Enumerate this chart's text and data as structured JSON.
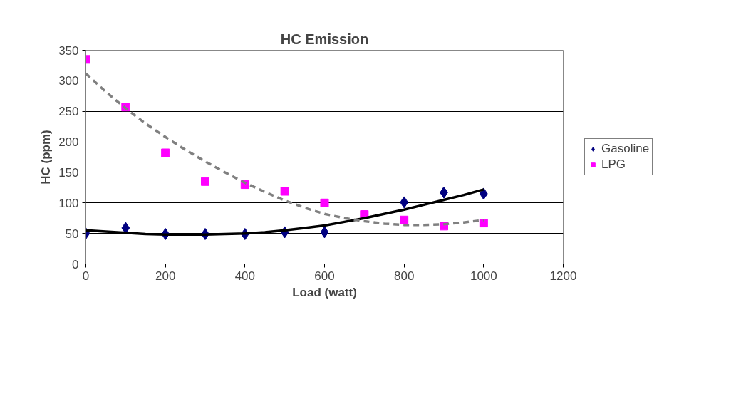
{
  "chart_data": {
    "type": "scatter",
    "title": "HC Emission",
    "xlabel": "Load (watt)",
    "ylabel": "HC (ppm)",
    "x": [
      0,
      100,
      200,
      300,
      400,
      500,
      600,
      700,
      800,
      900,
      1000
    ],
    "series": [
      {
        "name": "Gasoline",
        "color": "#000080",
        "marker": "diamond",
        "values": [
          50,
          59,
          49,
          49,
          49,
          52,
          52,
          null,
          101,
          117,
          115
        ]
      },
      {
        "name": "LPG",
        "color": "#ff00ff",
        "marker": "square",
        "values": [
          335,
          257,
          182,
          135,
          130,
          119,
          100,
          81,
          72,
          62,
          67
        ]
      },
      {
        "type": "line",
        "color": "#000000",
        "line_style": "solid",
        "x": [
          0,
          50,
          100,
          150,
          200,
          250,
          300,
          350,
          400,
          450,
          500,
          550,
          600,
          650,
          700,
          750,
          800,
          850,
          900,
          950,
          1000
        ],
        "values": [
          55,
          53,
          51,
          49,
          48,
          48,
          48,
          49,
          50,
          52,
          55,
          59,
          63,
          69,
          75,
          82,
          89,
          97,
          105,
          113,
          122
        ]
      },
      {
        "type": "line",
        "color": "#808080",
        "line_style": "dashed",
        "x": [
          0,
          50,
          100,
          150,
          200,
          250,
          300,
          350,
          400,
          450,
          500,
          550,
          600,
          650,
          700,
          750,
          800,
          850,
          900,
          950,
          1000
        ],
        "values": [
          312,
          282,
          255,
          230,
          208,
          187,
          168,
          150,
          133,
          118,
          104,
          92,
          82,
          75,
          70,
          66,
          64,
          64,
          65,
          68,
          72
        ]
      }
    ],
    "xlim": [
      0,
      1200
    ],
    "xticks": [
      0,
      200,
      400,
      600,
      800,
      1000,
      1200
    ],
    "ylim": [
      0,
      350
    ],
    "yticks": [
      0,
      50,
      100,
      150,
      200,
      250,
      300,
      350
    ],
    "grid": "y",
    "legend": "right"
  }
}
